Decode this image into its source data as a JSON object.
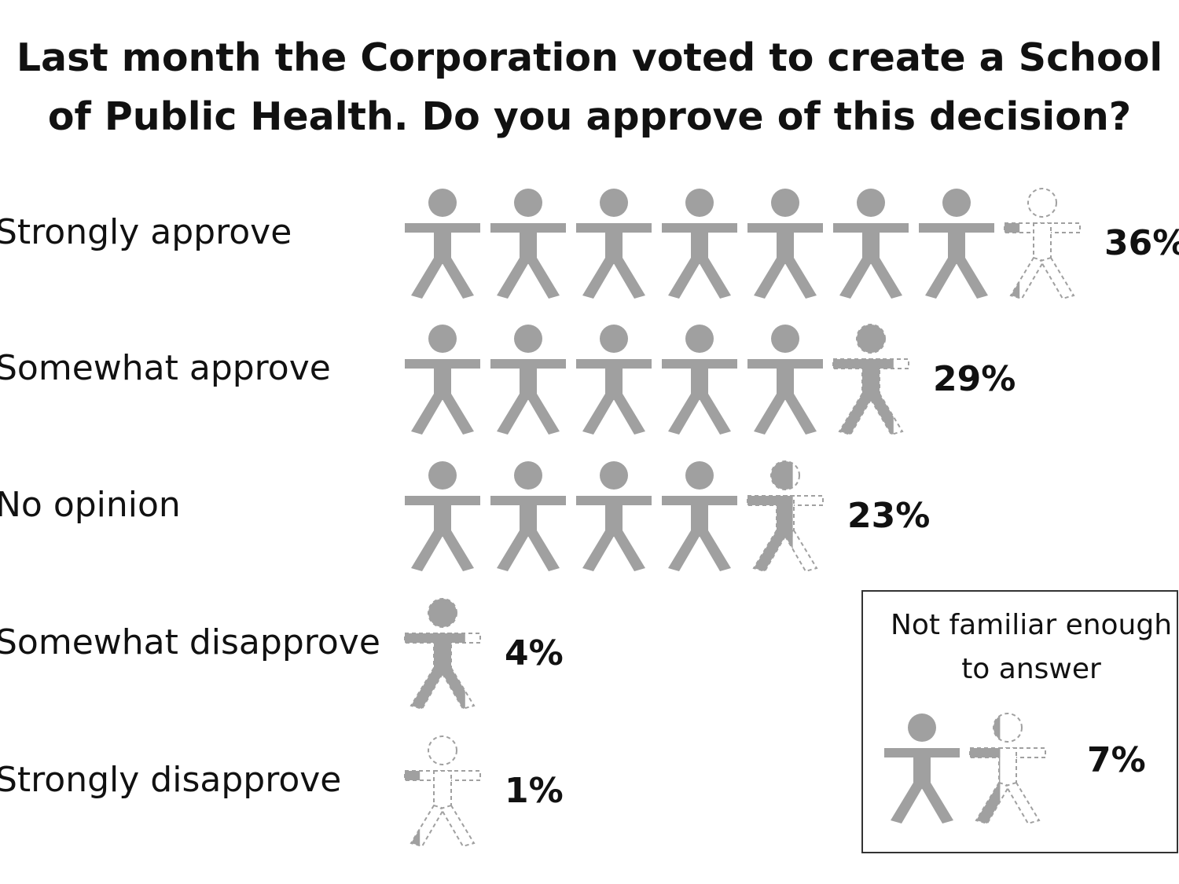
{
  "chart_data": {
    "type": "pictograph",
    "title": "Last month the Corporation voted to create a School of Public Health. Do you approve of this decision?",
    "categories": [
      "Strongly approve",
      "Somewhat approve",
      "No opinion",
      "Somewhat disapprove",
      "Strongly disapprove"
    ],
    "values": [
      36,
      29,
      23,
      4,
      1
    ],
    "value_labels": [
      "36%",
      "29%",
      "23%",
      "4%",
      "1%"
    ],
    "icon_value": 5,
    "color": "#a0a0a0",
    "inset": {
      "label": "Not familiar enough to answer",
      "value": 7,
      "value_label": "7%"
    }
  }
}
